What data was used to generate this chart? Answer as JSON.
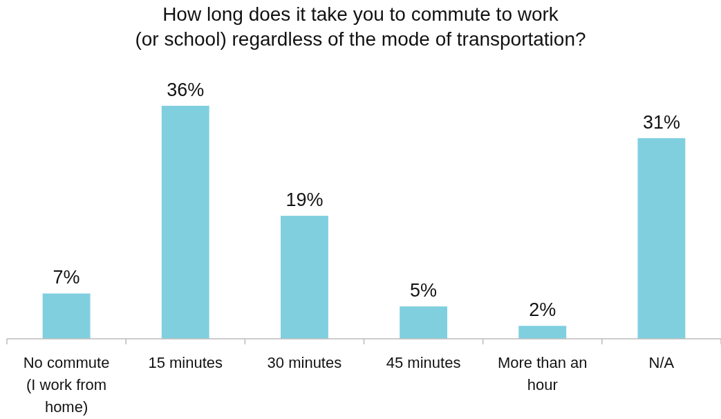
{
  "chart_data": {
    "type": "bar",
    "title": "How long does it take you to commute to work\n(or school) regardless of the mode of transportation?",
    "categories": [
      "No commute (I work from home)",
      "15 minutes",
      "30 minutes",
      "45 minutes",
      "More than an hour",
      "N/A"
    ],
    "values": [
      7,
      36,
      19,
      5,
      2,
      31
    ],
    "color": "#7fcfdf",
    "value_labels": [
      "7%",
      "36%",
      "19%",
      "5%",
      "2%",
      "31%"
    ]
  }
}
